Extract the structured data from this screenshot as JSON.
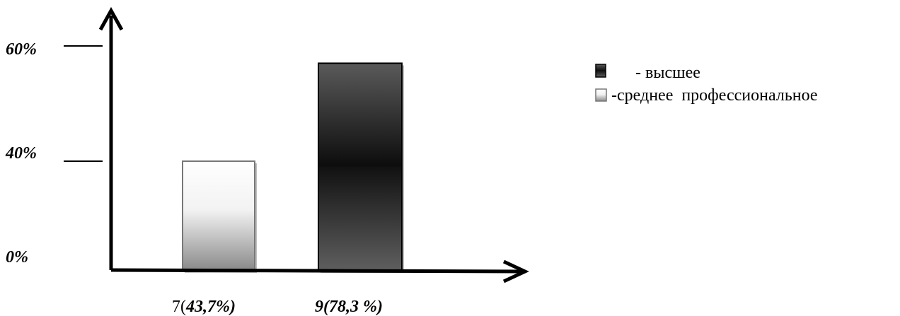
{
  "chart_data": {
    "type": "bar",
    "title": "",
    "xlabel": "",
    "ylabel": "",
    "y_tick_labels": [
      "0%",
      "40%",
      "60%"
    ],
    "y_tick_values": [
      0,
      40,
      60
    ],
    "ylim": [
      0,
      65
    ],
    "categories": [
      "7(43,7%)",
      "9(78,3 %)"
    ],
    "category_label_parts": [
      {
        "count": "7(",
        "percent": "43,7%)"
      },
      {
        "count": "9(78,3 %)",
        "percent": ""
      }
    ],
    "values": [
      40,
      57
    ],
    "bar_styles": [
      "light",
      "dark"
    ],
    "legend": {
      "position": "right",
      "items": [
        {
          "label": "- высшее",
          "style": "dark"
        },
        {
          "label": "-среднее  профессиональное",
          "style": "light"
        }
      ]
    },
    "grid": false
  }
}
